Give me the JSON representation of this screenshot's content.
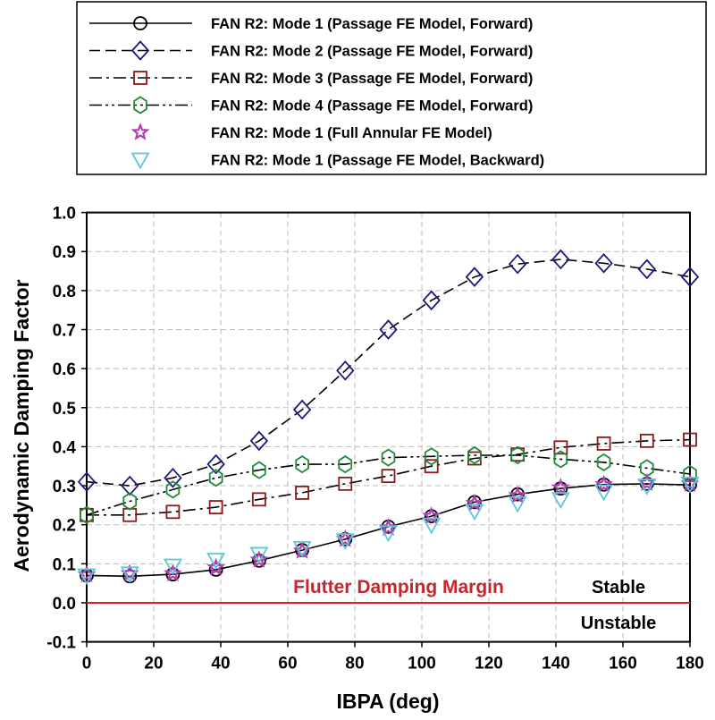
{
  "chart_data": {
    "type": "line",
    "title": "",
    "xlabel": "IBPA (deg)",
    "ylabel": "Aerodynamic Damping Factor",
    "xlim": [
      0,
      180
    ],
    "ylim": [
      -0.1,
      1.0
    ],
    "xticks": [
      "0",
      "20",
      "40",
      "60",
      "80",
      "100",
      "120",
      "140",
      "160",
      "180"
    ],
    "yticks": [
      "-0.1",
      "0.0",
      "0.1",
      "0.2",
      "0.3",
      "0.4",
      "0.5",
      "0.6",
      "0.7",
      "0.8",
      "0.9",
      "1.0"
    ],
    "grid": true,
    "legend_placement": "top, above plot",
    "x": [
      0,
      12.86,
      25.71,
      38.57,
      51.43,
      64.29,
      77.14,
      90,
      102.86,
      115.71,
      128.57,
      141.43,
      154.29,
      167.14,
      180
    ],
    "series": [
      {
        "name": "FAN R2: Mode 1 (Passage FE Model, Forward)",
        "marker": "circle",
        "line": "solid",
        "color": "#000000",
        "values": [
          0.07,
          0.068,
          0.073,
          0.085,
          0.108,
          0.135,
          0.163,
          0.195,
          0.222,
          0.258,
          0.278,
          0.293,
          0.303,
          0.305,
          0.302
        ]
      },
      {
        "name": "FAN R2: Mode 2 (Passage FE Model, Forward)",
        "marker": "diamond",
        "line": "dashed",
        "color": "#1a1a80",
        "values": [
          0.31,
          0.3,
          0.32,
          0.355,
          0.415,
          0.495,
          0.595,
          0.7,
          0.775,
          0.835,
          0.868,
          0.88,
          0.87,
          0.855,
          0.835
        ]
      },
      {
        "name": "FAN R2: Mode 3 (Passage FE Model, Forward)",
        "marker": "square",
        "line": "dashdot",
        "color": "#8b1a1a",
        "values": [
          0.225,
          0.225,
          0.233,
          0.245,
          0.265,
          0.282,
          0.305,
          0.325,
          0.35,
          0.37,
          0.38,
          0.398,
          0.408,
          0.415,
          0.418
        ]
      },
      {
        "name": "FAN R2: Mode 4 (Passage FE Model, Forward)",
        "marker": "hexagon",
        "line": "dashdotdot",
        "color": "#1e8a3a",
        "values": [
          0.225,
          0.26,
          0.29,
          0.32,
          0.34,
          0.355,
          0.355,
          0.372,
          0.375,
          0.378,
          0.378,
          0.368,
          0.36,
          0.345,
          0.33
        ]
      },
      {
        "name": "FAN R2: Mode 1 (Full Annular FE Model)",
        "marker": "star",
        "line": "none",
        "color": "#b040b0",
        "values": [
          0.072,
          0.075,
          0.075,
          0.09,
          0.11,
          0.133,
          0.163,
          0.192,
          0.222,
          0.255,
          0.275,
          0.295,
          0.303,
          0.307,
          0.305
        ]
      },
      {
        "name": "FAN R2: Mode 1 (Passage FE Model, Backward)",
        "marker": "triangle-down",
        "line": "none",
        "color": "#5bc8d8",
        "values": [
          0.07,
          0.075,
          0.095,
          0.11,
          0.125,
          0.14,
          0.16,
          0.18,
          0.2,
          0.235,
          0.255,
          0.265,
          0.285,
          0.3,
          0.305
        ]
      }
    ],
    "annotations": [
      {
        "text": "Flutter Damping Margin",
        "color": "#c0282d"
      },
      {
        "text": "Stable"
      },
      {
        "text": "Unstable"
      }
    ],
    "reference_line": {
      "y": 0.0,
      "color": "#e02020"
    }
  }
}
